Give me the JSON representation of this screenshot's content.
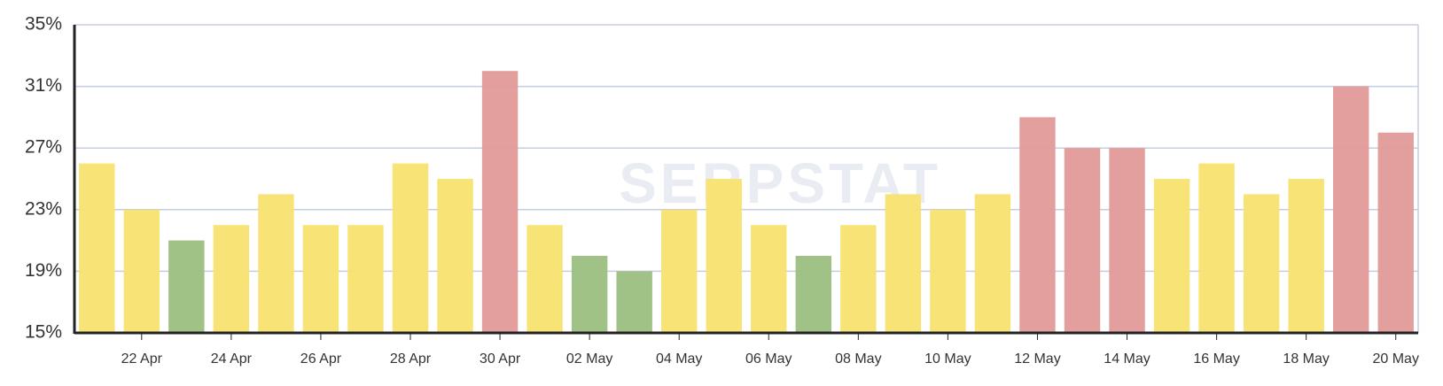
{
  "chart_data": {
    "type": "bar",
    "watermark": "SERPSTAT",
    "categories": [
      null,
      "22 Apr",
      null,
      "24 Apr",
      null,
      "26 Apr",
      null,
      "28 Apr",
      null,
      "30 Apr",
      null,
      "02 May",
      null,
      "04 May",
      null,
      "06 May",
      null,
      "08 May",
      null,
      "10 May",
      null,
      "12 May",
      null,
      "14 May",
      null,
      "16 May",
      null,
      "18 May",
      null,
      "20 May"
    ],
    "values": [
      26,
      23,
      21,
      22,
      24,
      22,
      22,
      26,
      25,
      32,
      22,
      20,
      19,
      23,
      25,
      22,
      20,
      22,
      24,
      23,
      24,
      29,
      27,
      27,
      25,
      26,
      24,
      25,
      31,
      28
    ],
    "colors": [
      "#f8e36f",
      "#f8e36f",
      "#9bbf80",
      "#f8e36f",
      "#f8e36f",
      "#f8e36f",
      "#f8e36f",
      "#f8e36f",
      "#f8e36f",
      "#e09a98",
      "#f8e36f",
      "#9bbf80",
      "#9bbf80",
      "#f8e36f",
      "#f8e36f",
      "#f8e36f",
      "#9bbf80",
      "#f8e36f",
      "#f8e36f",
      "#f8e36f",
      "#f8e36f",
      "#e09a98",
      "#e09a98",
      "#e09a98",
      "#f8e36f",
      "#f8e36f",
      "#f8e36f",
      "#f8e36f",
      "#e09a98",
      "#e09a98"
    ],
    "ylim": [
      15,
      35
    ],
    "yticks": [
      {
        "value": 15,
        "label": "15%"
      },
      {
        "value": 19,
        "label": "19%"
      },
      {
        "value": 23,
        "label": "23%"
      },
      {
        "value": 27,
        "label": "27%"
      },
      {
        "value": 31,
        "label": "31%"
      },
      {
        "value": 35,
        "label": "35%"
      }
    ],
    "grid": true
  }
}
